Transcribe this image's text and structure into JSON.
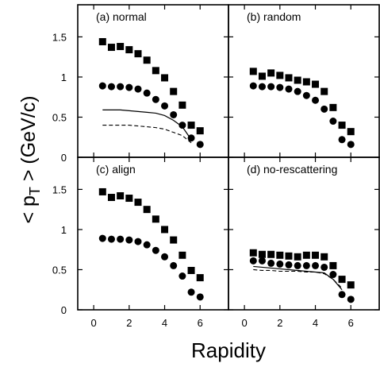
{
  "chart_data": {
    "type": "scatter",
    "xlabel": "Rapidity",
    "ylabel": {
      "main": "< p",
      "sub": "T",
      "tail": " > (GeV/c)"
    },
    "xlim": [
      -0.9,
      7.6
    ],
    "ylim": [
      0,
      1.9
    ],
    "x_ticks": [
      0,
      2,
      4,
      6
    ],
    "y_ticks": [
      0,
      0.5,
      1,
      1.5
    ],
    "y_tick_labels": [
      "0",
      "0.5",
      "1",
      "1.5"
    ],
    "grid": false,
    "legend": "none",
    "panels": [
      {
        "label": "(a) normal",
        "series": [
          {
            "marker": "square",
            "x": [
              0.5,
              1.0,
              1.5,
              2.0,
              2.5,
              3.0,
              3.5,
              4.0,
              4.5,
              5.0,
              5.5,
              6.0
            ],
            "y": [
              1.44,
              1.37,
              1.38,
              1.34,
              1.29,
              1.21,
              1.08,
              0.99,
              0.82,
              0.65,
              0.4,
              0.33
            ]
          },
          {
            "marker": "circle",
            "x": [
              0.5,
              1.0,
              1.5,
              2.0,
              2.5,
              3.0,
              3.5,
              4.0,
              4.5,
              5.0,
              5.5,
              6.0
            ],
            "y": [
              0.89,
              0.88,
              0.88,
              0.87,
              0.85,
              0.8,
              0.72,
              0.64,
              0.53,
              0.4,
              0.24,
              0.16
            ]
          },
          {
            "marker": "line-solid",
            "x": [
              0.5,
              1.0,
              1.5,
              2.0,
              2.5,
              3.0,
              3.5,
              4.0,
              4.5,
              5.0,
              5.5
            ],
            "y": [
              0.59,
              0.59,
              0.59,
              0.58,
              0.57,
              0.56,
              0.55,
              0.52,
              0.46,
              0.38,
              0.22
            ]
          },
          {
            "marker": "line-dashed",
            "x": [
              0.5,
              1.0,
              1.5,
              2.0,
              2.5,
              3.0,
              3.5,
              4.0,
              4.5,
              5.0,
              5.5
            ],
            "y": [
              0.4,
              0.4,
              0.4,
              0.4,
              0.39,
              0.38,
              0.37,
              0.35,
              0.31,
              0.27,
              0.18
            ]
          }
        ]
      },
      {
        "label": "(b) random",
        "series": [
          {
            "marker": "square",
            "x": [
              0.5,
              1.0,
              1.5,
              2.0,
              2.5,
              3.0,
              3.5,
              4.0,
              4.5,
              5.0,
              5.5,
              6.0
            ],
            "y": [
              1.07,
              1.01,
              1.05,
              1.02,
              0.99,
              0.96,
              0.94,
              0.91,
              0.82,
              0.62,
              0.4,
              0.32
            ]
          },
          {
            "marker": "circle",
            "x": [
              0.5,
              1.0,
              1.5,
              2.0,
              2.5,
              3.0,
              3.5,
              4.0,
              4.5,
              5.0,
              5.5,
              6.0
            ],
            "y": [
              0.89,
              0.88,
              0.88,
              0.87,
              0.85,
              0.82,
              0.77,
              0.71,
              0.6,
              0.45,
              0.22,
              0.16
            ]
          }
        ]
      },
      {
        "label": "(c) align",
        "series": [
          {
            "marker": "square",
            "x": [
              0.5,
              1.0,
              1.5,
              2.0,
              2.5,
              3.0,
              3.5,
              4.0,
              4.5,
              5.0,
              5.5,
              6.0
            ],
            "y": [
              1.47,
              1.4,
              1.42,
              1.39,
              1.34,
              1.25,
              1.13,
              1.0,
              0.87,
              0.68,
              0.49,
              0.4
            ]
          },
          {
            "marker": "circle",
            "x": [
              0.5,
              1.0,
              1.5,
              2.0,
              2.5,
              3.0,
              3.5,
              4.0,
              4.5,
              5.0,
              5.5,
              6.0
            ],
            "y": [
              0.89,
              0.88,
              0.88,
              0.87,
              0.85,
              0.81,
              0.74,
              0.66,
              0.55,
              0.42,
              0.22,
              0.16
            ]
          }
        ]
      },
      {
        "label": "(d) no-rescattering",
        "series": [
          {
            "marker": "square",
            "x": [
              0.5,
              1.0,
              1.5,
              2.0,
              2.5,
              3.0,
              3.5,
              4.0,
              4.5,
              5.0,
              5.5,
              6.0
            ],
            "y": [
              0.71,
              0.69,
              0.69,
              0.68,
              0.67,
              0.66,
              0.68,
              0.68,
              0.66,
              0.55,
              0.38,
              0.31
            ]
          },
          {
            "marker": "circle",
            "x": [
              0.5,
              1.0,
              1.5,
              2.0,
              2.5,
              3.0,
              3.5,
              4.0,
              4.5,
              5.0,
              5.5,
              6.0
            ],
            "y": [
              0.61,
              0.61,
              0.58,
              0.57,
              0.56,
              0.55,
              0.55,
              0.55,
              0.53,
              0.44,
              0.19,
              0.13
            ]
          },
          {
            "marker": "line-solid",
            "x": [
              0.5,
              1.0,
              1.5,
              2.0,
              2.5,
              3.0,
              3.5,
              4.0,
              4.5,
              5.0,
              5.5
            ],
            "y": [
              0.54,
              0.53,
              0.52,
              0.51,
              0.5,
              0.49,
              0.48,
              0.47,
              0.46,
              0.38,
              0.25
            ]
          },
          {
            "marker": "line-dashed",
            "x": [
              0.5,
              1.0,
              1.5,
              2.0,
              2.5,
              3.0,
              3.5,
              4.0,
              4.5,
              5.0,
              5.5
            ],
            "y": [
              0.5,
              0.49,
              0.49,
              0.48,
              0.48,
              0.48,
              0.47,
              0.47,
              0.45,
              0.38,
              0.27
            ]
          }
        ]
      }
    ]
  }
}
